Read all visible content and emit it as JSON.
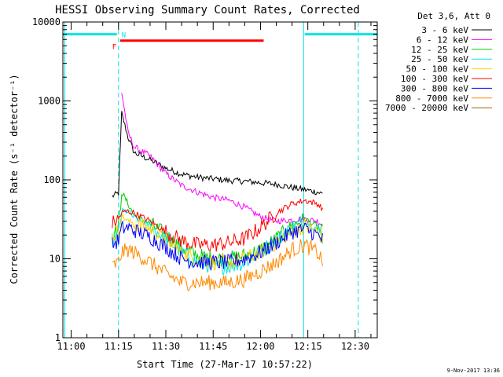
{
  "chart_data": {
    "type": "line",
    "title": "HESSI Observing Summary Count Rates, Corrected",
    "xlabel": "Start Time (27-Mar-17 10:57:22)",
    "ylabel": "Corrected Count Rate (s⁻¹ detector⁻¹)",
    "yscale": "log",
    "ylim": [
      1,
      10000
    ],
    "xlim": [
      "10:57:22",
      "12:37:00"
    ],
    "x_ticks": [
      "11:00",
      "11:15",
      "11:30",
      "11:45",
      "12:00",
      "12:15",
      "12:30"
    ],
    "y_ticks": [
      "1",
      "10",
      "100",
      "1000",
      "10000"
    ],
    "legend_title": "Det 3,6, Att 0",
    "legend_position": "right",
    "x": [
      "11:10",
      "11:13",
      "11:15",
      "11:16",
      "11:18",
      "11:20",
      "11:25",
      "11:30",
      "11:35",
      "11:40",
      "11:45",
      "11:50",
      "11:55",
      "12:00",
      "12:05",
      "12:10",
      "12:14",
      "12:18",
      "12:20"
    ],
    "series": [
      {
        "name": "3 - 6 keV",
        "color": "#000000",
        "values": [
          null,
          62,
          68,
          700,
          350,
          220,
          180,
          140,
          118,
          108,
          103,
          98,
          96,
          92,
          88,
          80,
          75,
          70,
          66
        ]
      },
      {
        "name": "6 - 12 keV",
        "color": "#ff00ff",
        "values": [
          null,
          null,
          null,
          1300,
          400,
          260,
          200,
          120,
          85,
          70,
          60,
          55,
          45,
          34,
          30,
          31,
          32,
          30,
          27
        ]
      },
      {
        "name": "12 - 25 keV",
        "color": "#00cc00",
        "values": [
          null,
          20,
          24,
          70,
          50,
          35,
          28,
          20,
          14,
          11,
          10,
          10,
          11,
          13,
          18,
          26,
          32,
          26,
          20
        ]
      },
      {
        "name": "25 - 50 keV",
        "color": "#00e5e5",
        "values": [
          null,
          17,
          20,
          40,
          40,
          33,
          26,
          18,
          12,
          9,
          8,
          8,
          9,
          12,
          17,
          25,
          30,
          24,
          18
        ]
      },
      {
        "name": "50 - 100 keV",
        "color": "#ffd000",
        "values": [
          null,
          19,
          22,
          35,
          30,
          28,
          24,
          17,
          12,
          10,
          9,
          9,
          10,
          12,
          16,
          22,
          26,
          22,
          17
        ]
      },
      {
        "name": "100 - 300 keV",
        "color": "#ff0000",
        "values": [
          null,
          28,
          32,
          38,
          40,
          38,
          30,
          22,
          17,
          15,
          15,
          16,
          18,
          25,
          38,
          50,
          55,
          50,
          42
        ]
      },
      {
        "name": "300 - 800 keV",
        "color": "#0000ff",
        "values": [
          null,
          15,
          17,
          24,
          25,
          23,
          19,
          14,
          10,
          9,
          9,
          9,
          10,
          12,
          16,
          22,
          24,
          20,
          17
        ]
      },
      {
        "name": "800 - 7000 keV",
        "color": "#ff8800",
        "values": [
          null,
          8,
          9,
          12,
          13,
          12,
          9,
          6.5,
          5,
          5,
          5,
          5,
          5.5,
          7,
          9,
          13,
          15,
          12,
          9
        ]
      },
      {
        "name": "7000 - 20000 keV",
        "color": "#996600",
        "values": [
          null,
          null,
          null,
          null,
          null,
          null,
          null,
          null,
          null,
          null,
          null,
          null,
          null,
          null,
          null,
          null,
          null,
          null,
          null
        ]
      }
    ],
    "annotations": [
      {
        "label": "N",
        "color": "#00e5e5"
      },
      {
        "label": "F",
        "color": "#ff0000"
      }
    ],
    "night_intervals": [
      [
        "10:57:22",
        "11:14:30"
      ],
      [
        "12:14:00",
        "12:37:00"
      ]
    ],
    "night_markers_dashed": [
      "11:15:00",
      "12:31:00"
    ],
    "night_markers_solid": [
      "10:58:00",
      "12:13:40"
    ],
    "flare_interval": [
      "11:15:30",
      "12:01:00"
    ],
    "footer": "9-Nov-2017 13:36"
  }
}
